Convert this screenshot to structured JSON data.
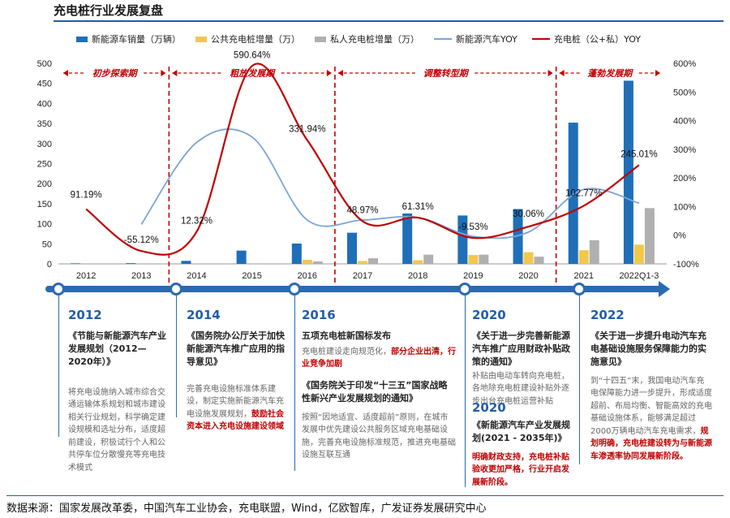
{
  "page_title": "充电桩行业发展复盘",
  "colors": {
    "ev_sales": "#1f6fb8",
    "public_pile": "#f2c84b",
    "private_pile": "#b0b0b0",
    "ev_yoy": "#7aa6d6",
    "pile_yoy": "#c00000",
    "timeline": "#2a6ab0",
    "phase_line": "#c00000"
  },
  "chart_data": {
    "type": "bar",
    "categories": [
      "2012",
      "2013",
      "2014",
      "2015",
      "2016",
      "2017",
      "2018",
      "2019",
      "2020",
      "2021",
      "2022Q1-3"
    ],
    "series": [
      {
        "name": "新能源车销量（万辆）",
        "kind": "bar",
        "axis": "left",
        "values": [
          1.3,
          1.8,
          7.5,
          33.1,
          50.7,
          77.7,
          125.6,
          120.6,
          136.7,
          352.1,
          456.7
        ]
      },
      {
        "name": "公共充电桩增量（万）",
        "kind": "bar",
        "axis": "left",
        "values": [
          0,
          0,
          0,
          0,
          10,
          7,
          9,
          22,
          29,
          34,
          48
        ]
      },
      {
        "name": "私人充电桩增量（万）",
        "kind": "bar",
        "axis": "left",
        "values": [
          0,
          0,
          0,
          0,
          6,
          14,
          23,
          23,
          18,
          59,
          139
        ]
      },
      {
        "name": "新能源汽车YOY",
        "kind": "line",
        "axis": "right",
        "values": [
          null,
          37.9,
          324,
          343,
          53,
          53,
          62,
          -4,
          10.9,
          160,
          112
        ]
      },
      {
        "name": "充电桩（公+私）YOY",
        "kind": "line",
        "axis": "right",
        "values": [
          91.19,
          -55.12,
          12.32,
          590.64,
          331.94,
          48.97,
          61.31,
          -9.53,
          30.06,
          102.77,
          245.01
        ]
      }
    ],
    "line_labels": [
      "91.19%",
      "-55.12%",
      "12.32%",
      "590.64%",
      "331.94%",
      "48.97%",
      "61.31%",
      "-9.53%",
      "30.06%",
      "102.77%",
      "245.01%"
    ],
    "left_axis": {
      "min": 0,
      "max": 500,
      "ticks": [
        "0",
        "50",
        "100",
        "150",
        "200",
        "250",
        "300",
        "350",
        "400",
        "450",
        "500"
      ]
    },
    "right_axis": {
      "min": -100,
      "max": 600,
      "ticks": [
        "-100%",
        "0%",
        "100%",
        "200%",
        "300%",
        "400%",
        "500%",
        "600%"
      ]
    },
    "phases": [
      {
        "label": "初步探索期"
      },
      {
        "label": "粗放发展期"
      },
      {
        "label": "调整转型期"
      },
      {
        "label": "蓬勃发展期"
      }
    ]
  },
  "timeline": [
    {
      "year": "2012",
      "items": [
        {
          "policy": "《节能与新能源汽车产业发展规划（2012—2020年）》",
          "desc": "将充电设施纳入城市综合交通运输体系规划和城市建设相关行业规划，科学确定建设规模和选址分布，适度超前建设，积极试行个人和公共停车位分散慢充等充电技术模式",
          "highlight": ""
        }
      ]
    },
    {
      "year": "2014",
      "items": [
        {
          "policy": "《国务院办公厅关于加快新能源汽车推广应用的指导意见》",
          "desc": "完善充电设施标准体系建设，制定实施新能源汽车充电设施发展规划，",
          "highlight": "鼓励社会资本进入充电设施建设领域"
        }
      ]
    },
    {
      "year": "2016",
      "items": [
        {
          "policy": "五项充电桩新国标发布",
          "desc": "充电桩建设走向规范化，",
          "highlight": "部分企业出清，行业竞争加剧"
        },
        {
          "policy": "《国务院关于印发“十三五”国家战略性新兴产业发展规划的通知》",
          "desc": "按照“因地适宜、适度超前”原则，在城市发展中优先建设公共服务区域充电基础设施，完善充电设施标准规范，推进充电基础设施互联互通",
          "highlight": ""
        }
      ]
    },
    {
      "year": "2020",
      "items": [
        {
          "policy": "《关于进一步完善新能源汽车推广应用财政补贴政策的通知》",
          "desc": "补贴由电动车转向充电桩，各地除充电桩建设补贴外逐步出台充电桩运营补贴",
          "highlight": ""
        }
      ]
    },
    {
      "year": "2020",
      "items": [
        {
          "policy": "《新能源汽车产业发展规划(2021 - 2035年)》",
          "desc": "",
          "highlight": "明确财政支持，充电桩补贴验收更加严格，行业开启发展新阶段。"
        }
      ]
    },
    {
      "year": "2022",
      "items": [
        {
          "policy": "《关于进一步提升电动汽车充电基础设施服务保障能力的实施意见》",
          "desc": "到“十四五”末，我国电动汽车充电保障能力进一步提升，形成适度超前、布局均衡、智能高效的充电基础设施体系，能够满足超过2000万辆电动汽车充电需求，",
          "highlight": "规划明确，充电桩建设转为与新能源车渗透率协同发展新阶段。"
        }
      ]
    }
  ],
  "source": "数据来源：国家发展改革委，中国汽车工业协会，充电联盟，Wind，亿欧智库，广发证券发展研究中心"
}
